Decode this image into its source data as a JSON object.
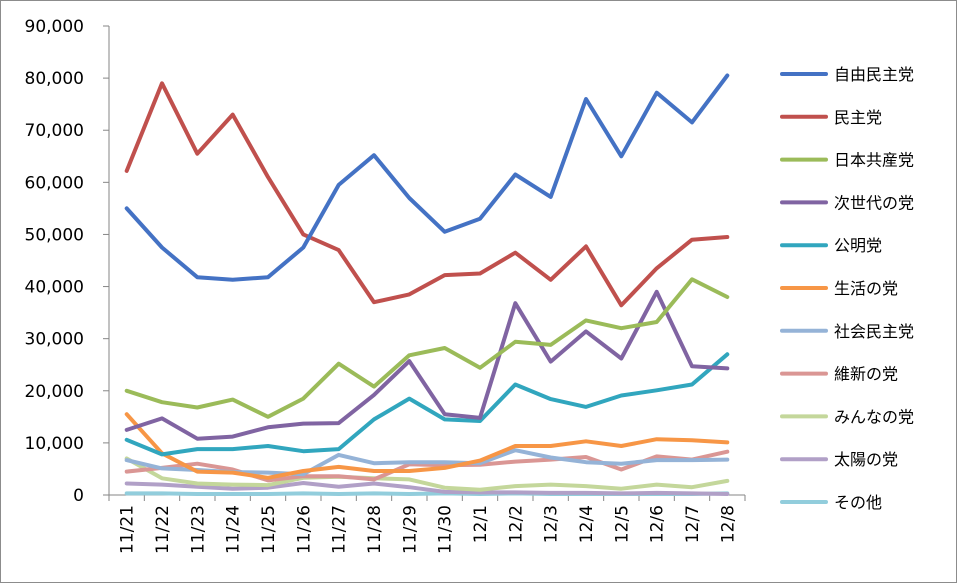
{
  "chart_data": {
    "type": "line",
    "title": "",
    "xlabel": "",
    "ylabel": "",
    "ylim": [
      0,
      90000
    ],
    "yticks": [
      "0",
      "10,000",
      "20,000",
      "30,000",
      "40,000",
      "50,000",
      "60,000",
      "70,000",
      "80,000",
      "90,000"
    ],
    "grid": false,
    "legend_position": "right",
    "categories": [
      "11/21",
      "11/22",
      "11/23",
      "11/24",
      "11/25",
      "11/26",
      "11/27",
      "11/28",
      "11/29",
      "11/30",
      "12/1",
      "12/2",
      "12/3",
      "12/4",
      "12/5",
      "12/6",
      "12/7",
      "12/8"
    ],
    "series": [
      {
        "name": "自由民主党",
        "color": "#4472C4",
        "values": [
          55000,
          47500,
          41800,
          41300,
          41800,
          47500,
          59500,
          65200,
          57000,
          50500,
          53000,
          61500,
          57200,
          76000,
          65000,
          77200,
          71500,
          80500
        ]
      },
      {
        "name": "民主党",
        "color": "#C0504D",
        "values": [
          62200,
          79000,
          65500,
          73000,
          61000,
          50000,
          47000,
          37000,
          38500,
          42200,
          42500,
          46500,
          41300,
          47700,
          36400,
          43500,
          49000,
          49500
        ]
      },
      {
        "name": "日本共産党",
        "color": "#9BBB59",
        "values": [
          20000,
          17800,
          16800,
          18300,
          15000,
          18500,
          25200,
          20800,
          26800,
          28200,
          24400,
          29400,
          28800,
          33500,
          32000,
          33200,
          41400,
          38000
        ]
      },
      {
        "name": "次世代の党",
        "color": "#8064A2",
        "values": [
          12500,
          14700,
          10800,
          11200,
          13000,
          13700,
          13800,
          19200,
          25700,
          15500,
          14800,
          36800,
          25600,
          31400,
          26200,
          39000,
          24700,
          24300
        ]
      },
      {
        "name": "公明党",
        "color": "#31A6BE",
        "values": [
          10600,
          7800,
          8800,
          8800,
          9400,
          8400,
          8800,
          14500,
          18500,
          14500,
          14200,
          21200,
          18400,
          16900,
          19100,
          20100,
          21200,
          27000
        ]
      },
      {
        "name": "生活の党",
        "color": "#F79646",
        "values": [
          15500,
          8000,
          4500,
          4300,
          3300,
          4600,
          5400,
          4600,
          4600,
          5200,
          6600,
          9400,
          9400,
          10300,
          9400,
          10700,
          10500,
          10100
        ]
      },
      {
        "name": "社会民主党",
        "color": "#95B3D7",
        "values": [
          6700,
          5100,
          4800,
          4400,
          4300,
          4000,
          7700,
          6100,
          6300,
          6300,
          6100,
          8600,
          7200,
          6300,
          6000,
          6700,
          6700,
          6800
        ]
      },
      {
        "name": "維新の党",
        "color": "#DA9694",
        "values": [
          4500,
          5200,
          6000,
          4900,
          2800,
          3600,
          3600,
          3000,
          5900,
          5700,
          5800,
          6400,
          6800,
          7300,
          4900,
          7400,
          6800,
          8300
        ]
      },
      {
        "name": "みんなの党",
        "color": "#C4D79B",
        "values": [
          7000,
          3200,
          2200,
          2000,
          1900,
          3300,
          3500,
          3200,
          3000,
          1400,
          1000,
          1700,
          2000,
          1700,
          1200,
          2000,
          1500,
          2700
        ]
      },
      {
        "name": "太陽の党",
        "color": "#B1A0C7",
        "values": [
          2200,
          2000,
          1600,
          1200,
          1400,
          2300,
          1600,
          2200,
          1500,
          600,
          500,
          500,
          400,
          400,
          300,
          400,
          300,
          200
        ]
      },
      {
        "name": "その他",
        "color": "#92CDDC",
        "values": [
          300,
          300,
          200,
          200,
          200,
          300,
          200,
          300,
          200,
          300,
          200,
          300,
          200,
          200,
          200,
          200,
          200,
          300
        ]
      }
    ]
  }
}
